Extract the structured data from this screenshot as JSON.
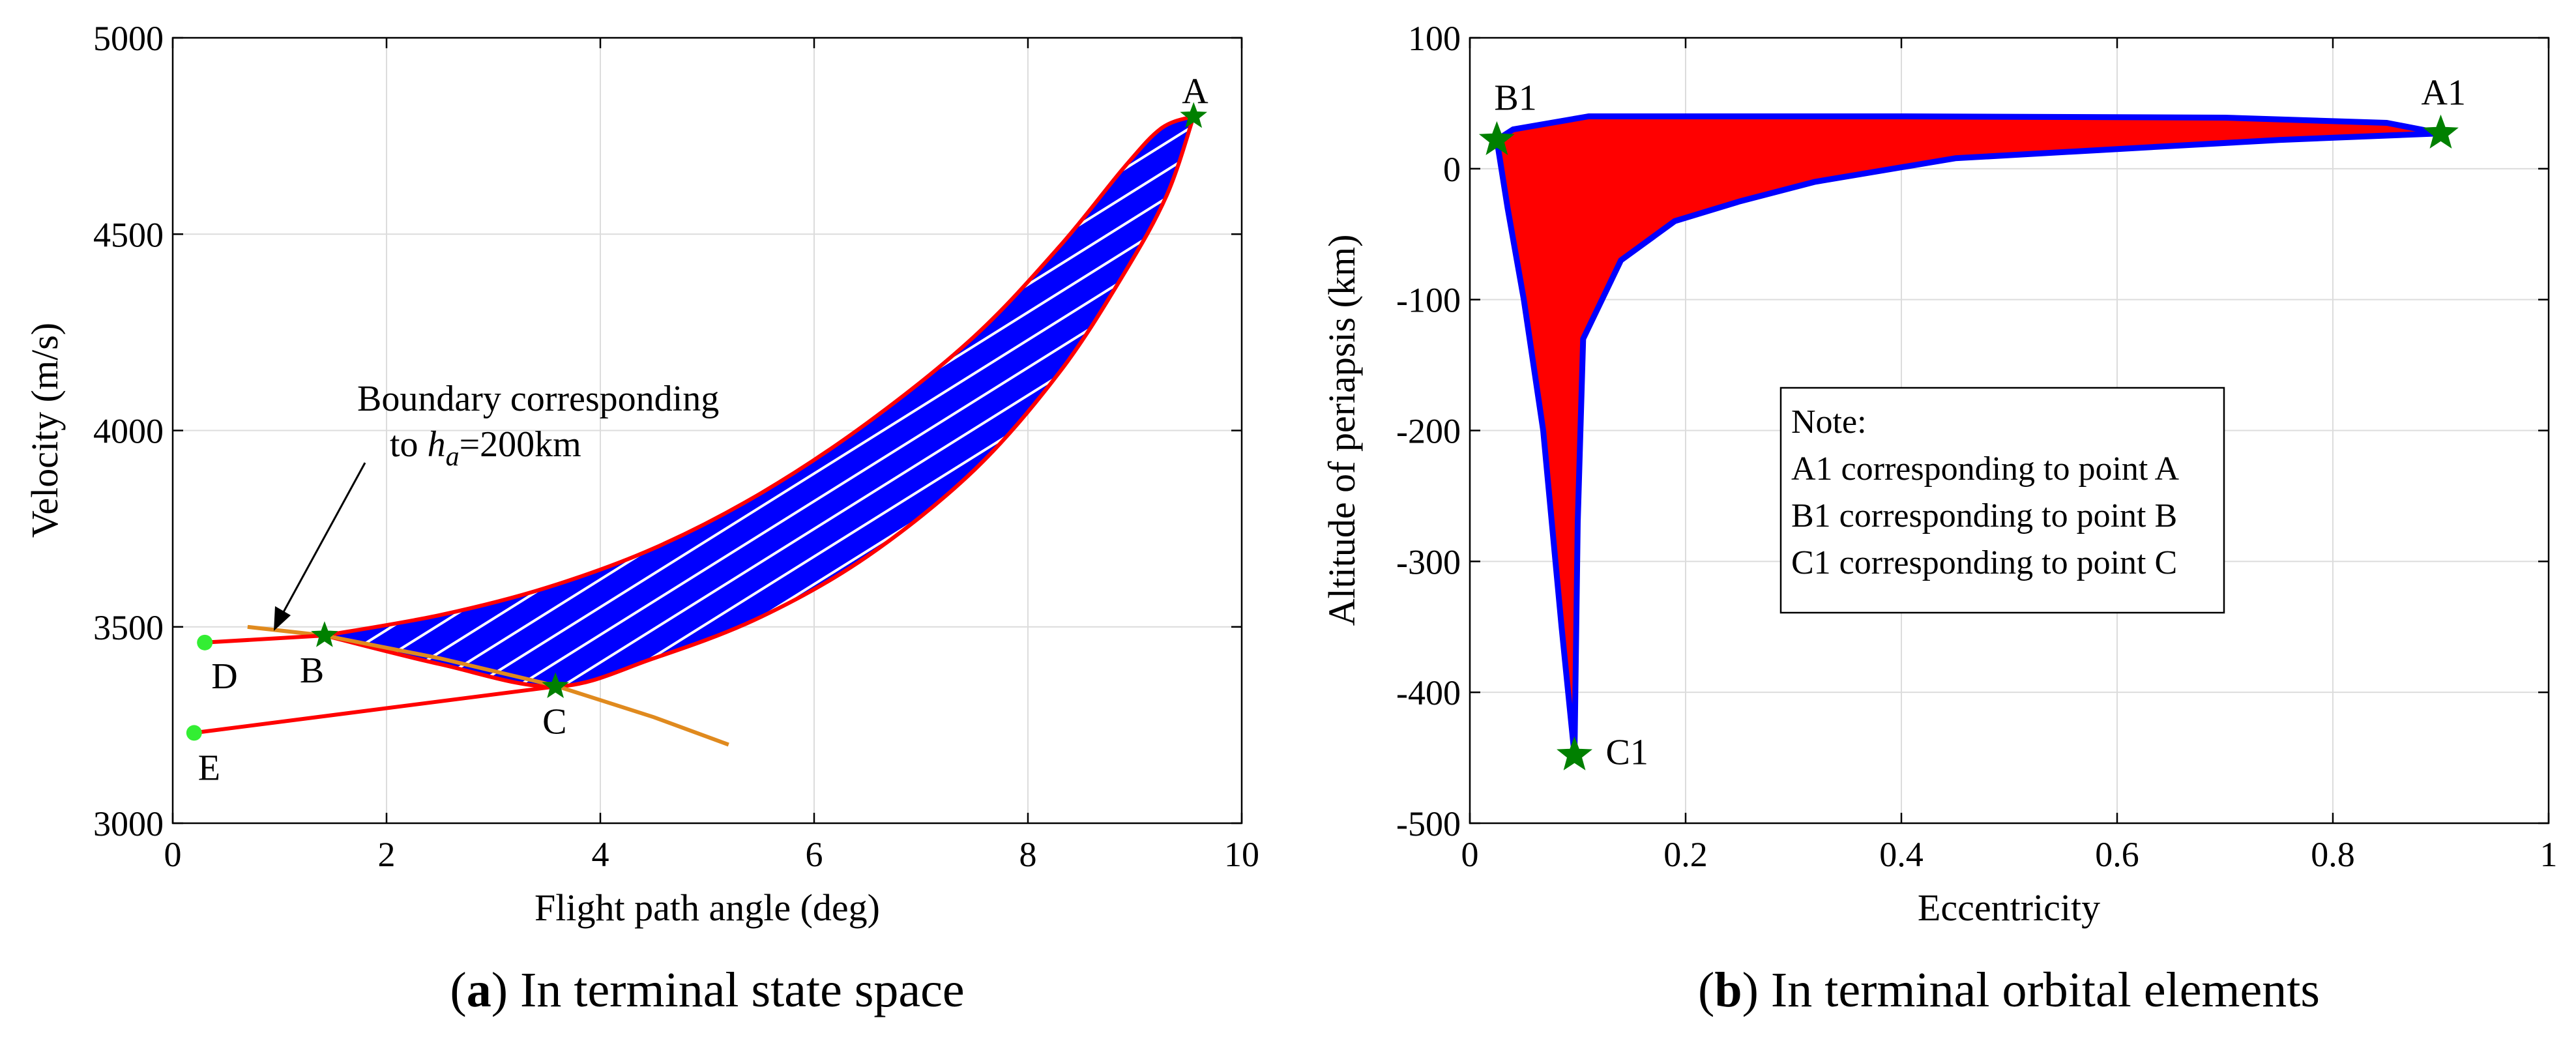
{
  "chart_data": [
    {
      "type": "line",
      "panel_label_bold": "a",
      "panel_caption": "In terminal state space",
      "xlabel": "Flight path angle (deg)",
      "ylabel": "Velocity (m/s)",
      "xlim": [
        0,
        10
      ],
      "ylim": [
        3000,
        5000
      ],
      "xticks": [
        0,
        2,
        4,
        6,
        8,
        10
      ],
      "yticks": [
        3000,
        3500,
        4000,
        4500,
        5000
      ],
      "grid": true,
      "colors": {
        "boundary": "#ff0000",
        "fill": "#0000ff",
        "hatch": "#ffffff",
        "ha_line": "#e08a1e",
        "marker_star": "#008000",
        "marker_dot": "#33ee33"
      },
      "region_upper": [
        [
          1.42,
          3478
        ],
        [
          2.5,
          3530
        ],
        [
          3.5,
          3600
        ],
        [
          4.5,
          3700
        ],
        [
          5.5,
          3840
        ],
        [
          6.5,
          4020
        ],
        [
          7.5,
          4240
        ],
        [
          8.3,
          4470
        ],
        [
          8.9,
          4670
        ],
        [
          9.25,
          4770
        ],
        [
          9.55,
          4800
        ]
      ],
      "region_lower": [
        [
          1.42,
          3478
        ],
        [
          2.5,
          3405
        ],
        [
          3.58,
          3348
        ],
        [
          4.5,
          3420
        ],
        [
          5.5,
          3525
        ],
        [
          6.5,
          3680
        ],
        [
          7.5,
          3900
        ],
        [
          8.3,
          4150
        ],
        [
          8.9,
          4400
        ],
        [
          9.3,
          4600
        ],
        [
          9.55,
          4800
        ]
      ],
      "ha_boundary": [
        [
          0.7,
          3500
        ],
        [
          1.42,
          3478
        ],
        [
          2.5,
          3420
        ],
        [
          3.58,
          3350
        ],
        [
          4.5,
          3270
        ],
        [
          5.2,
          3200
        ]
      ],
      "segment_D": [
        [
          0.3,
          3460
        ],
        [
          1.42,
          3478
        ]
      ],
      "segment_E": [
        [
          0.2,
          3230
        ],
        [
          3.58,
          3348
        ]
      ],
      "points": [
        {
          "label": "A",
          "x": 9.55,
          "y": 4800,
          "marker": "star"
        },
        {
          "label": "B",
          "x": 1.42,
          "y": 3478,
          "marker": "star"
        },
        {
          "label": "C",
          "x": 3.58,
          "y": 3348,
          "marker": "star"
        },
        {
          "label": "D",
          "x": 0.3,
          "y": 3460,
          "marker": "dot"
        },
        {
          "label": "E",
          "x": 0.2,
          "y": 3230,
          "marker": "dot"
        }
      ],
      "annotation": {
        "line1": "Boundary corresponding",
        "line2_prefix": "to ",
        "h": "h",
        "sub": "a",
        "line2_suffix": "=200km"
      }
    },
    {
      "type": "area",
      "panel_label_bold": "b",
      "panel_caption": "In terminal orbital elements",
      "xlabel": "Eccentricity",
      "ylabel": "Altitude of periapsis (km)",
      "xlim": [
        0,
        1
      ],
      "ylim": [
        -500,
        100
      ],
      "xticks": [
        0,
        0.2,
        0.4,
        0.6,
        0.8,
        1
      ],
      "xtick_labels": [
        "0",
        "0.2",
        "0.4",
        "0.6",
        "0.8",
        "1"
      ],
      "yticks": [
        -500,
        -400,
        -300,
        -200,
        -100,
        0,
        100
      ],
      "grid": true,
      "colors": {
        "fill": "#ff0000",
        "edge": "#0000ff",
        "marker_star": "#008000"
      },
      "region": [
        [
          0.025,
          22
        ],
        [
          0.04,
          30
        ],
        [
          0.11,
          40
        ],
        [
          0.4,
          40
        ],
        [
          0.7,
          39
        ],
        [
          0.85,
          35
        ],
        [
          0.9,
          27
        ],
        [
          0.75,
          22
        ],
        [
          0.6,
          15
        ],
        [
          0.45,
          8
        ],
        [
          0.32,
          -10
        ],
        [
          0.25,
          -25
        ],
        [
          0.19,
          -40
        ],
        [
          0.14,
          -70
        ],
        [
          0.105,
          -130
        ],
        [
          0.1,
          -270
        ],
        [
          0.097,
          -448
        ],
        [
          0.085,
          -350
        ],
        [
          0.068,
          -200
        ],
        [
          0.05,
          -100
        ],
        [
          0.035,
          -30
        ],
        [
          0.025,
          22
        ]
      ],
      "points": [
        {
          "label": "A1",
          "x": 0.9,
          "y": 27,
          "marker": "star"
        },
        {
          "label": "B1",
          "x": 0.025,
          "y": 22,
          "marker": "star"
        },
        {
          "label": "C1",
          "x": 0.097,
          "y": -448,
          "marker": "star"
        }
      ],
      "legend": {
        "title": "Note:",
        "lines": [
          "A1 corresponding to point A",
          "B1 corresponding to point B",
          "C1 corresponding to point C"
        ]
      }
    }
  ]
}
